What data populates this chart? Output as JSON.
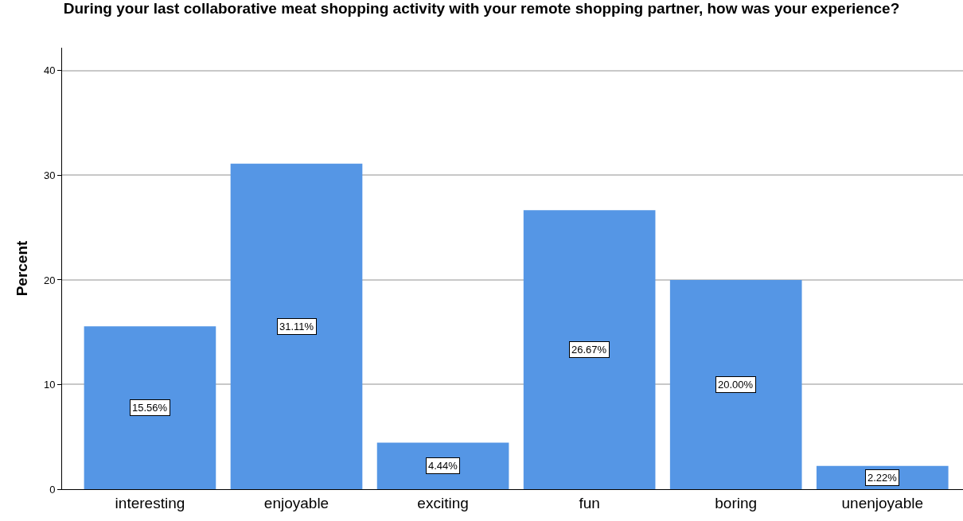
{
  "chart_data": {
    "type": "bar",
    "title": "During your last collaborative meat shopping activity with your remote shopping partner, how was your experience?",
    "ylabel": "Percent",
    "categories": [
      "interesting",
      "enjoyable",
      "exciting",
      "fun",
      "boring",
      "unenjoyable"
    ],
    "values": [
      15.56,
      31.11,
      4.44,
      26.67,
      20.0,
      2.22
    ],
    "value_labels": [
      "15.56%",
      "31.11%",
      "4.44%",
      "26.67%",
      "20.00%",
      "2.22%"
    ],
    "color": "#5596e5",
    "ylim": [
      0,
      42.2
    ],
    "yticks": [
      0,
      10,
      20,
      30,
      40
    ],
    "grid": "y"
  }
}
